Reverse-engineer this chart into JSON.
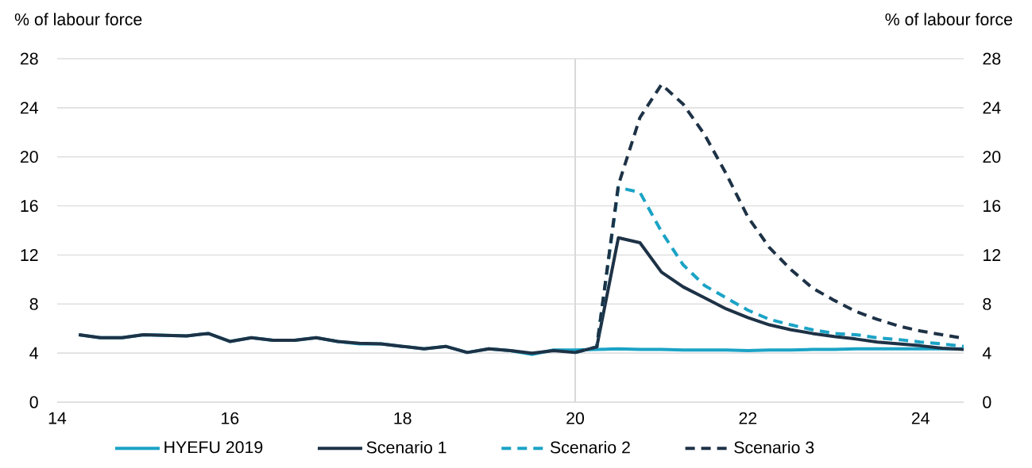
{
  "chart_data": {
    "type": "line",
    "ylabel": "% of labour force",
    "y2label": "% of labour force",
    "xlim": [
      14,
      24.5
    ],
    "xticks": [
      14,
      16,
      18,
      20,
      22,
      24
    ],
    "ylim": [
      0,
      28
    ],
    "yticks": [
      0,
      4,
      8,
      12,
      16,
      20,
      24,
      28
    ],
    "y2lim": [
      0,
      28
    ],
    "y2ticks": [
      0,
      4,
      8,
      12,
      16,
      20,
      24,
      28
    ],
    "grid": "y",
    "legend": "bottom",
    "ref_lines": [
      {
        "axis": "x",
        "value": 20,
        "color": "#d9d9d9"
      }
    ],
    "series": [
      {
        "name": "HYEFU 2019",
        "color": "#1ba3c6",
        "line_style": "solid",
        "x": [
          14.25,
          14.5,
          14.75,
          15,
          15.25,
          15.5,
          15.75,
          16,
          16.25,
          16.5,
          16.75,
          17,
          17.25,
          17.5,
          17.75,
          18,
          18.25,
          18.5,
          18.75,
          19,
          19.25,
          19.5,
          19.75,
          20,
          20.25,
          20.5,
          20.75,
          21,
          21.25,
          21.5,
          21.75,
          22,
          22.25,
          22.5,
          22.75,
          23,
          23.25,
          23.5,
          23.75,
          24,
          24.25,
          24.5
        ],
        "values": [
          5.5,
          5.25,
          5.25,
          5.5,
          5.45,
          5.4,
          5.6,
          4.95,
          5.25,
          5.05,
          5.05,
          5.25,
          4.95,
          4.75,
          4.75,
          4.55,
          4.35,
          4.55,
          4.05,
          4.35,
          4.2,
          3.9,
          4.25,
          4.25,
          4.3,
          4.35,
          4.3,
          4.3,
          4.25,
          4.25,
          4.25,
          4.2,
          4.25,
          4.25,
          4.3,
          4.3,
          4.35,
          4.35,
          4.35,
          4.35,
          4.35,
          4.35
        ]
      },
      {
        "name": "Scenario 1",
        "color": "#1e3246",
        "line_style": "solid",
        "x": [
          14.25,
          14.5,
          14.75,
          15,
          15.25,
          15.5,
          15.75,
          16,
          16.25,
          16.5,
          16.75,
          17,
          17.25,
          17.5,
          17.75,
          18,
          18.25,
          18.5,
          18.75,
          19,
          19.25,
          19.5,
          19.75,
          20,
          20.25,
          20.5,
          20.75,
          21,
          21.25,
          21.5,
          21.75,
          22,
          22.25,
          22.5,
          22.75,
          23,
          23.25,
          23.5,
          23.75,
          24,
          24.25,
          24.5
        ],
        "values": [
          5.5,
          5.25,
          5.25,
          5.5,
          5.45,
          5.4,
          5.6,
          4.95,
          5.25,
          5.05,
          5.05,
          5.25,
          4.95,
          4.8,
          4.75,
          4.55,
          4.35,
          4.55,
          4.05,
          4.35,
          4.2,
          4.0,
          4.2,
          4.05,
          4.5,
          13.4,
          13.0,
          10.6,
          9.4,
          8.5,
          7.6,
          6.9,
          6.3,
          5.9,
          5.6,
          5.35,
          5.15,
          4.9,
          4.75,
          4.6,
          4.4,
          4.3
        ]
      },
      {
        "name": "Scenario 2",
        "color": "#1ba3c6",
        "line_style": "dashed",
        "x": [
          20,
          20.25,
          20.5,
          20.75,
          21,
          21.25,
          21.5,
          21.75,
          22,
          22.25,
          22.5,
          22.75,
          23,
          23.25,
          23.5,
          23.75,
          24,
          24.25,
          24.5
        ],
        "values": [
          4.05,
          4.5,
          17.5,
          17.1,
          13.9,
          11.2,
          9.5,
          8.5,
          7.5,
          6.75,
          6.3,
          5.9,
          5.6,
          5.5,
          5.25,
          5.1,
          4.9,
          4.75,
          4.55
        ]
      },
      {
        "name": "Scenario 3",
        "color": "#1e3246",
        "line_style": "dashed",
        "x": [
          20,
          20.25,
          20.5,
          20.75,
          21,
          21.25,
          21.5,
          21.75,
          22,
          22.25,
          22.5,
          22.75,
          23,
          23.25,
          23.5,
          23.75,
          24,
          24.25,
          24.5
        ],
        "values": [
          4.05,
          4.5,
          17.7,
          23.2,
          25.9,
          24.3,
          21.8,
          18.6,
          15.1,
          12.6,
          10.8,
          9.3,
          8.3,
          7.4,
          6.75,
          6.2,
          5.8,
          5.5,
          5.2
        ]
      }
    ]
  }
}
